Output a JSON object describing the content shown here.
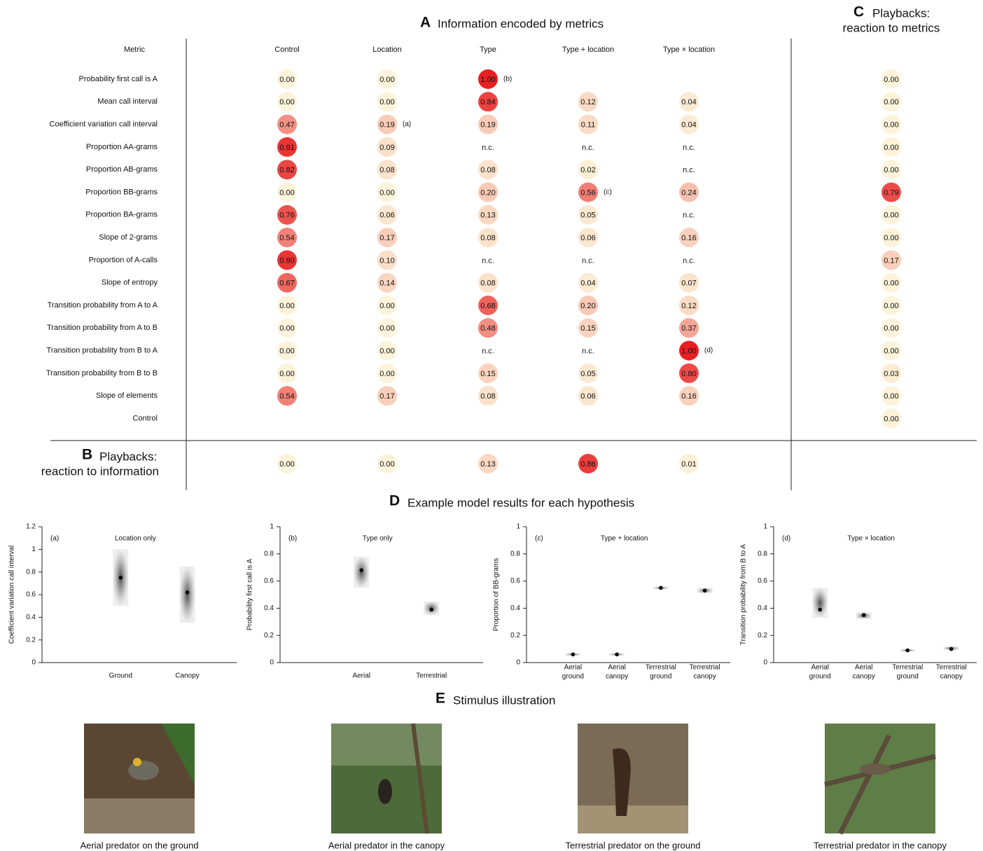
{
  "panelA": {
    "letter": "A",
    "title": "Information encoded by metrics",
    "columns": [
      "Metric",
      "Control",
      "Location",
      "Type",
      "Type + location",
      "Type × location"
    ],
    "rows": [
      {
        "metric": "Probability first call is A",
        "cells": [
          "0.00",
          "0.00",
          "1.00",
          null,
          null
        ],
        "note": {
          "col": 2,
          "text": "(b)"
        }
      },
      {
        "metric": "Mean call interval",
        "cells": [
          "0.00",
          "0.00",
          "0.84",
          "0.12",
          "0.04"
        ]
      },
      {
        "metric": "Coefficient variation call interval",
        "cells": [
          "0.47",
          "0.19",
          "0.19",
          "0.11",
          "0.04"
        ],
        "note": {
          "col": 1,
          "text": "(a)"
        }
      },
      {
        "metric": "Proportion AA-grams",
        "cells": [
          "0.91",
          "0.09",
          "n.c.",
          "n.c.",
          "n.c."
        ]
      },
      {
        "metric": "Proportion AB-grams",
        "cells": [
          "0.82",
          "0.08",
          "0.08",
          "0.02",
          "n.c."
        ]
      },
      {
        "metric": "Proportion BB-grams",
        "cells": [
          "0.00",
          "0.00",
          "0.20",
          "0.56",
          "0.24"
        ],
        "note": {
          "col": 3,
          "text": "(c)"
        }
      },
      {
        "metric": "Proportion BA-grams",
        "cells": [
          "0.76",
          "0.06",
          "0.13",
          "0.05",
          "n.c."
        ]
      },
      {
        "metric": "Slope of 2-grams",
        "cells": [
          "0.54",
          "0.17",
          "0.08",
          "0.06",
          "0.16"
        ]
      },
      {
        "metric": "Proportion of A-calls",
        "cells": [
          "0.90",
          "0.10",
          "n.c.",
          "n.c.",
          "n.c."
        ]
      },
      {
        "metric": "Slope of entropy",
        "cells": [
          "0.67",
          "0.14",
          "0.08",
          "0.04",
          "0.07"
        ]
      },
      {
        "metric": "Transition probability from A to A",
        "cells": [
          "0.00",
          "0.00",
          "0.68",
          "0.20",
          "0.12"
        ]
      },
      {
        "metric": "Transition probability from A to B",
        "cells": [
          "0.00",
          "0.00",
          "0.48",
          "0.15",
          "0.37"
        ]
      },
      {
        "metric": "Transition probability from B to A",
        "cells": [
          "0.00",
          "0.00",
          "n.c.",
          "n.c.",
          "1.00"
        ],
        "note": {
          "col": 4,
          "text": "(d)"
        }
      },
      {
        "metric": "Transition probability from B to B",
        "cells": [
          "0.00",
          "0.00",
          "0.15",
          "0.05",
          "0.80"
        ]
      },
      {
        "metric": "Slope of elements",
        "cells": [
          "0.54",
          "0.17",
          "0.08",
          "0.06",
          "0.16"
        ]
      },
      {
        "metric": "Control",
        "cells": [
          null,
          null,
          null,
          null,
          null
        ]
      }
    ]
  },
  "panelB": {
    "letter": "B",
    "title": [
      "Playbacks:",
      "reaction to information"
    ],
    "cells": [
      "0.00",
      "0.00",
      "0.13",
      "0.86",
      "0.01"
    ]
  },
  "panelC": {
    "letter": "C",
    "title": [
      "Playbacks:",
      "reaction to metrics"
    ],
    "cells": [
      "0.00",
      "0.00",
      "0.00",
      "0.00",
      "0.00",
      "0.79",
      "0.00",
      "0.00",
      "0.17",
      "0.00",
      "0.00",
      "0.00",
      "0.00",
      "0.03",
      "0.00",
      "0.00"
    ]
  },
  "panelD": {
    "letter": "D",
    "title": "Example model results for each hypothesis"
  },
  "chart_data": [
    {
      "type": "cloud",
      "tag": "(a)",
      "label": "Location only",
      "ylabel": "Coefficient variation call interval",
      "ylim": [
        0,
        1.2
      ],
      "yticks": [
        0,
        0.2,
        0.4,
        0.6,
        0.8,
        1,
        1.2
      ],
      "categories": [
        [
          "Ground"
        ],
        [
          "Canopy"
        ]
      ],
      "values": [
        0.75,
        0.62
      ],
      "lows": [
        0.5,
        0.35
      ],
      "highs": [
        1.0,
        0.85
      ]
    },
    {
      "type": "cloud",
      "tag": "(b)",
      "label": "Type only",
      "ylabel": "Probability first call is A",
      "ylim": [
        0,
        1
      ],
      "yticks": [
        0,
        0.2,
        0.4,
        0.6,
        0.8,
        1
      ],
      "categories": [
        [
          "Aerial"
        ],
        [
          "Terrestrial"
        ]
      ],
      "values": [
        0.68,
        0.39
      ],
      "lows": [
        0.55,
        0.35
      ],
      "highs": [
        0.78,
        0.45
      ]
    },
    {
      "type": "cloud",
      "tag": "(c)",
      "label": "Type + location",
      "ylabel": "Proportion of BB-grams",
      "ylim": [
        0,
        1
      ],
      "yticks": [
        0,
        0.2,
        0.4,
        0.6,
        0.8,
        1
      ],
      "categories": [
        [
          "Aerial",
          "ground"
        ],
        [
          "Aerial",
          "canopy"
        ],
        [
          "Terrestrial",
          "ground"
        ],
        [
          "Terrestrial",
          "canopy"
        ]
      ],
      "values": [
        0.06,
        0.06,
        0.55,
        0.53
      ],
      "lows": [
        0.05,
        0.05,
        0.54,
        0.51
      ],
      "highs": [
        0.07,
        0.07,
        0.56,
        0.55
      ]
    },
    {
      "type": "cloud",
      "tag": "(d)",
      "label": "Type × location",
      "ylabel": "Transition probability from B to A",
      "ylim": [
        0,
        1
      ],
      "yticks": [
        0,
        0.2,
        0.4,
        0.6,
        0.8,
        1
      ],
      "categories": [
        [
          "Aerial",
          "ground"
        ],
        [
          "Aerial",
          "canopy"
        ],
        [
          "Terrestrial",
          "ground"
        ],
        [
          "Terrestrial",
          "canopy"
        ]
      ],
      "values": [
        0.39,
        0.35,
        0.09,
        0.1
      ],
      "lows": [
        0.33,
        0.32,
        0.08,
        0.09
      ],
      "highs": [
        0.55,
        0.37,
        0.1,
        0.12
      ]
    }
  ],
  "panelE": {
    "letter": "E",
    "title": "Stimulus illustration",
    "captions": [
      "Aerial predator on the ground",
      "Aerial predator in the canopy",
      "Terrestrial predator on the ground",
      "Terrestrial predator in the canopy"
    ]
  }
}
